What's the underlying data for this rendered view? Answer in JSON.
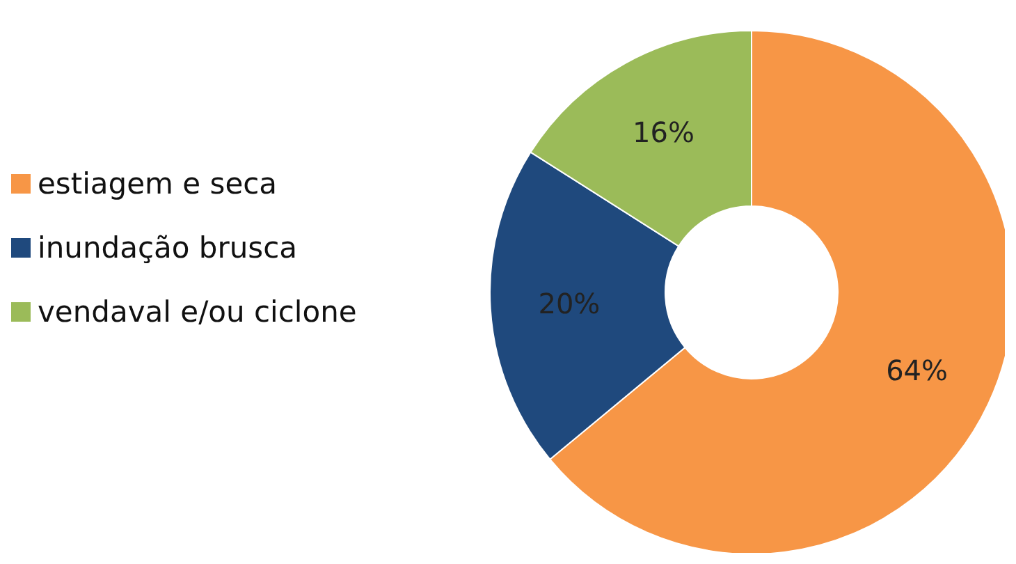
{
  "chart_data": {
    "type": "donut",
    "categories": [
      "estiagem e seca",
      "inundação brusca",
      "vendaval e/ou ciclone"
    ],
    "values": [
      64,
      20,
      16
    ],
    "colors": [
      "#f79646",
      "#1f497d",
      "#9bbb59"
    ],
    "value_labels": [
      "64%",
      "20%",
      "16%"
    ],
    "legend": "left"
  }
}
